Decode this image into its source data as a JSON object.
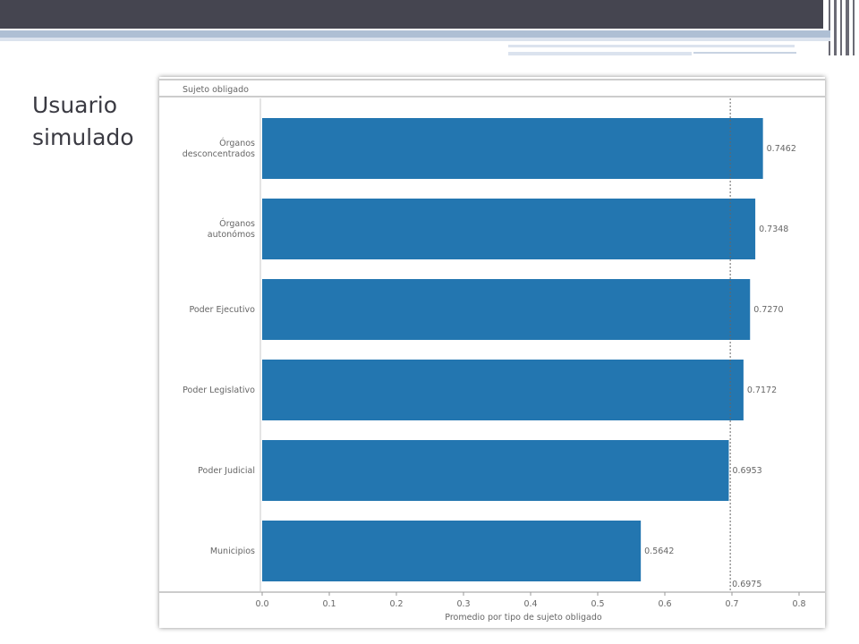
{
  "slide": {
    "title": "Usuario\nsimulado"
  },
  "chart_data": {
    "type": "bar",
    "orientation": "horizontal",
    "title": "",
    "category_axis_label": "Sujeto obligado",
    "xlabel": "Promedio por tipo de sujeto obligado",
    "ylabel": "Sujeto obligado",
    "categories": [
      [
        "Órganos",
        "desconcentrados"
      ],
      [
        "Órganos",
        "autonómos"
      ],
      [
        "Poder Ejecutivo"
      ],
      [
        "Poder Legislativo"
      ],
      [
        "Poder Judicial"
      ],
      [
        "Municipios"
      ]
    ],
    "values": [
      0.7462,
      0.7348,
      0.727,
      0.7172,
      0.6953,
      0.5642
    ],
    "value_labels": [
      "0.7462",
      "0.7348",
      "0.7270",
      "0.7172",
      "0.6953",
      "0.5642"
    ],
    "reference_line": {
      "value": 0.6975,
      "label": "0.6975",
      "style": "dotted"
    },
    "xlim": [
      0,
      0.8
    ],
    "xticks": [
      "0.0",
      "0.1",
      "0.2",
      "0.3",
      "0.4",
      "0.5",
      "0.6",
      "0.7",
      "0.8"
    ],
    "xtick_values": [
      0,
      0.1,
      0.2,
      0.3,
      0.4,
      0.5,
      0.6,
      0.7,
      0.8
    ],
    "bar_color": "#2376b0",
    "grid": false,
    "legend": "none"
  }
}
